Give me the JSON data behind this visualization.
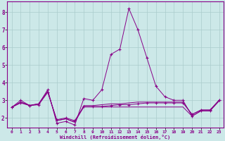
{
  "xlabel": "Windchill (Refroidissement éolien,°C)",
  "background_color": "#cce8e8",
  "grid_color": "#aacccc",
  "line_color": "#880088",
  "hours": [
    0,
    1,
    2,
    3,
    4,
    5,
    6,
    7,
    8,
    9,
    10,
    11,
    12,
    13,
    14,
    15,
    16,
    17,
    18,
    19,
    20,
    21,
    22,
    23
  ],
  "series1": [
    2.6,
    3.0,
    2.7,
    2.8,
    3.6,
    1.7,
    1.8,
    1.6,
    3.1,
    3.0,
    3.6,
    5.6,
    5.9,
    8.2,
    7.0,
    5.4,
    3.8,
    3.2,
    3.0,
    3.0,
    2.1,
    2.4,
    2.4,
    3.0
  ],
  "series2": [
    2.6,
    2.85,
    2.7,
    2.75,
    3.45,
    1.9,
    2.0,
    1.85,
    2.65,
    2.65,
    2.65,
    2.7,
    2.75,
    2.75,
    2.8,
    2.85,
    2.85,
    2.85,
    2.85,
    2.85,
    2.2,
    2.45,
    2.45,
    3.0
  ],
  "series3": [
    2.6,
    2.9,
    2.7,
    2.8,
    3.5,
    1.85,
    1.95,
    1.75,
    2.7,
    2.7,
    2.75,
    2.8,
    2.8,
    2.85,
    2.9,
    2.9,
    2.9,
    2.9,
    2.9,
    2.9,
    2.2,
    2.45,
    2.45,
    3.0
  ],
  "series4": [
    2.6,
    2.9,
    2.72,
    2.8,
    3.5,
    1.85,
    1.95,
    1.78,
    2.62,
    2.62,
    2.62,
    2.62,
    2.62,
    2.62,
    2.62,
    2.62,
    2.62,
    2.62,
    2.62,
    2.62,
    2.1,
    2.4,
    2.4,
    2.95
  ],
  "ylim": [
    1.45,
    8.6
  ],
  "yticks": [
    2,
    3,
    4,
    5,
    6,
    7,
    8
  ],
  "xlim": [
    -0.5,
    23.5
  ],
  "xticks": [
    0,
    1,
    2,
    3,
    4,
    5,
    6,
    7,
    8,
    9,
    10,
    11,
    12,
    13,
    14,
    15,
    16,
    17,
    18,
    19,
    20,
    21,
    22,
    23
  ]
}
